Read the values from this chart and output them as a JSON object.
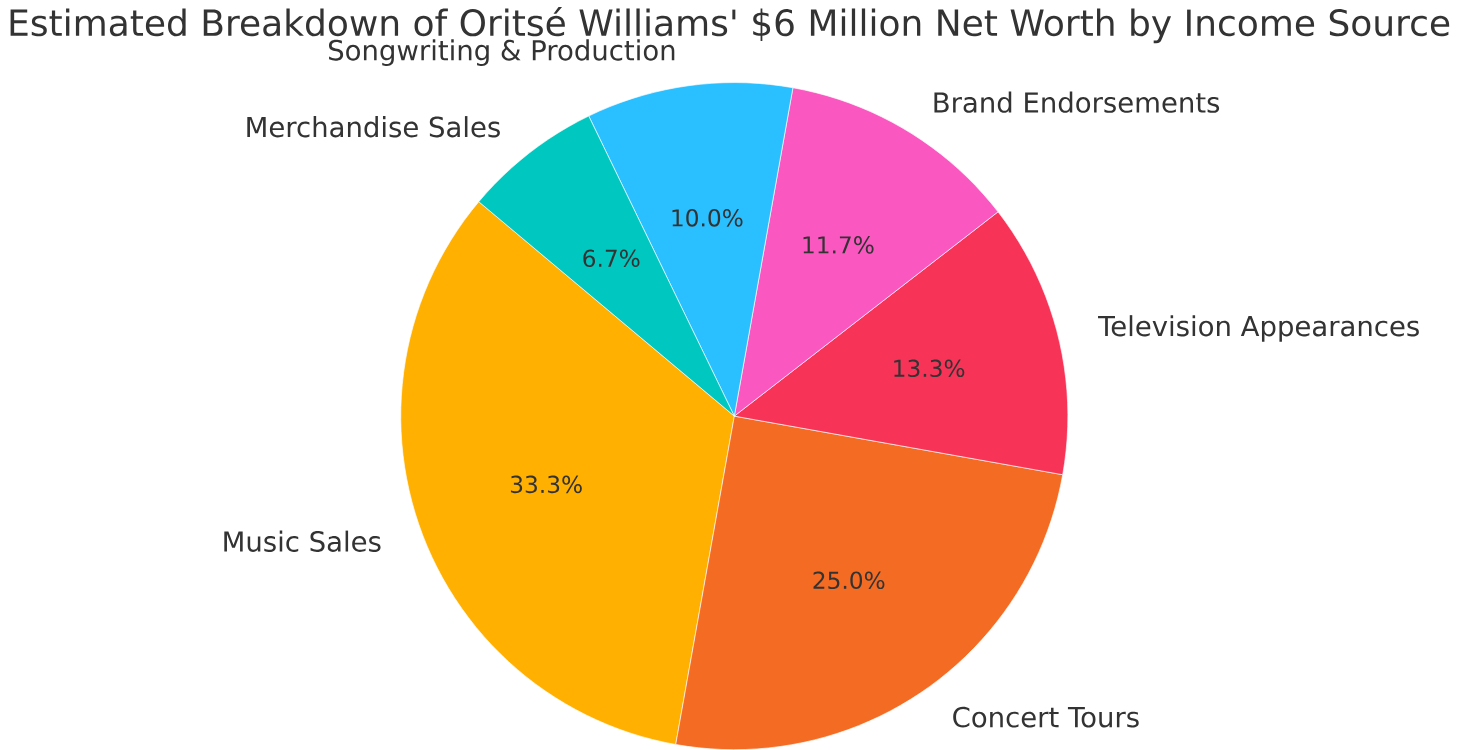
{
  "chart_data": {
    "type": "pie",
    "title": "Estimated Breakdown of Oritsé Williams' $6 Million Net Worth by Income Source",
    "categories": [
      "Music Sales",
      "Concert Tours",
      "Television Appearances",
      "Brand Endorsements",
      "Songwriting & Production",
      "Merchandise Sales"
    ],
    "values": [
      33.3,
      25.0,
      13.3,
      11.7,
      10.0,
      6.7
    ],
    "value_labels": [
      "33.3%",
      "25.0%",
      "13.3%",
      "11.7%",
      "10.0%",
      "6.7%"
    ],
    "colors": [
      "#ffb000",
      "#f46b23",
      "#f83358",
      "#fa57c1",
      "#2abfff",
      "#00c8c0"
    ]
  }
}
